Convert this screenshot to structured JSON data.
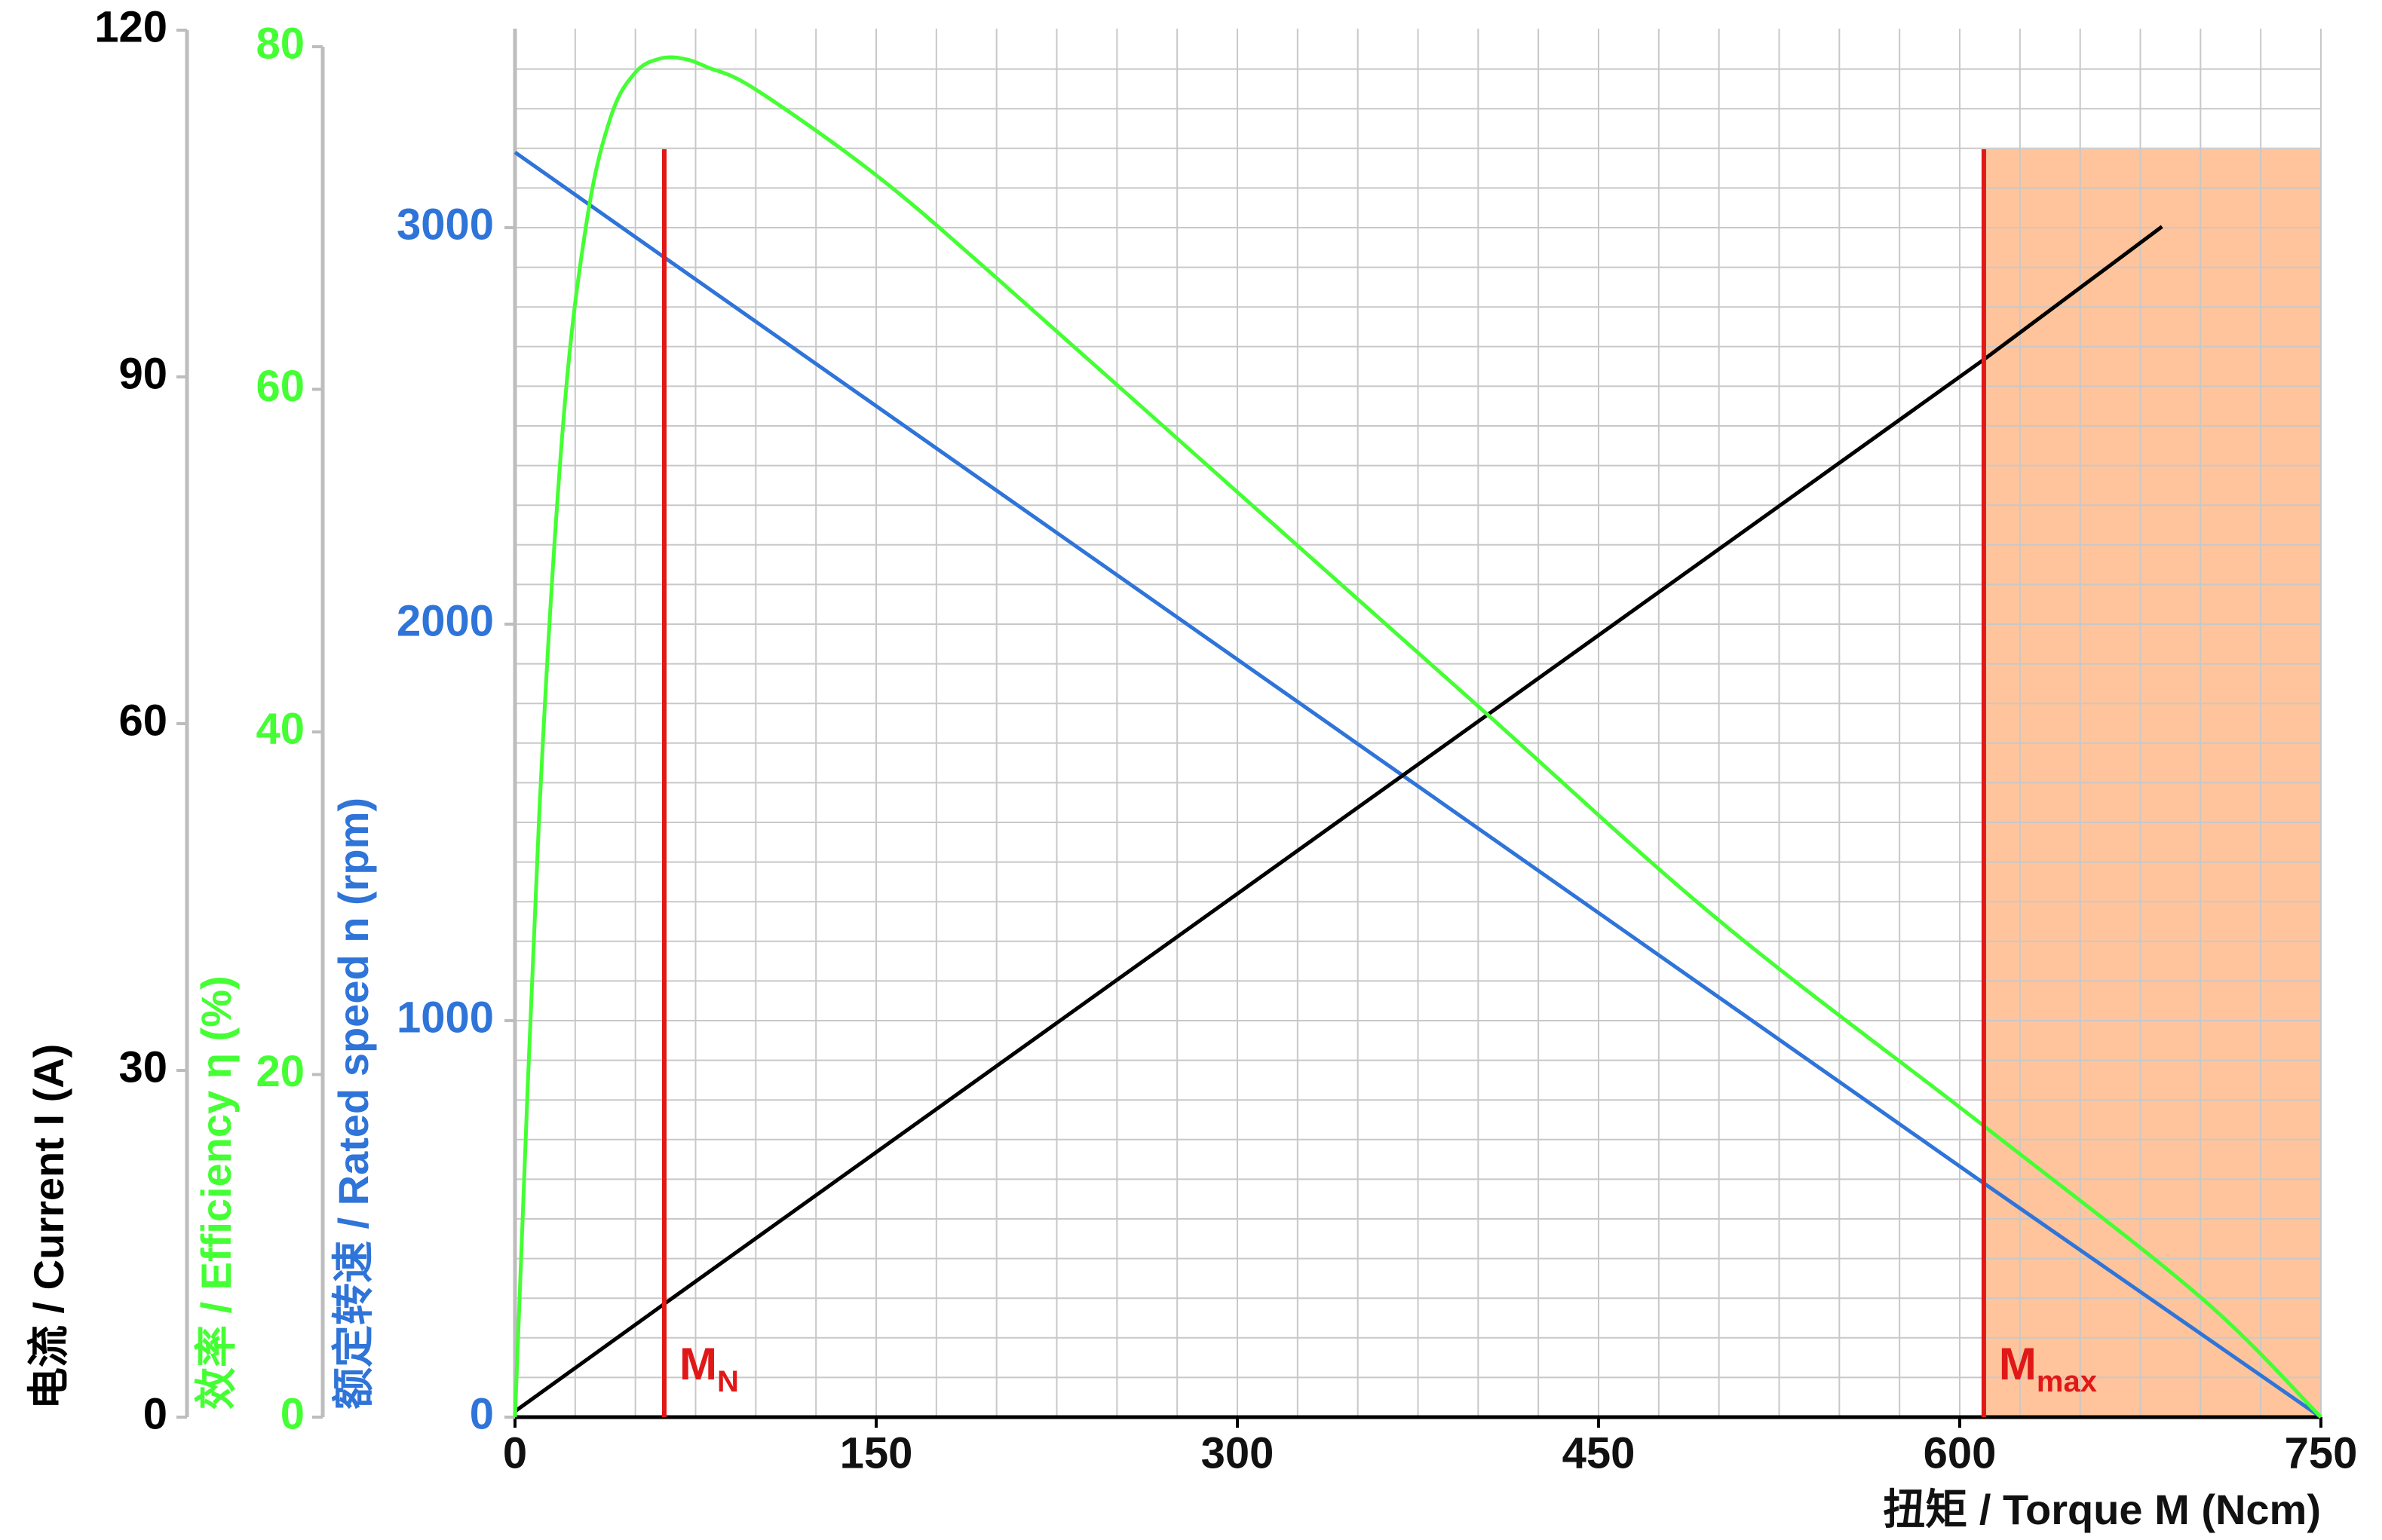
{
  "chart_data": {
    "type": "line",
    "xlabel": "扭矩 / Torque M (Ncm)",
    "xlim": [
      0,
      750
    ],
    "x_ticks": [
      "0",
      "150",
      "300",
      "450",
      "600",
      "750"
    ],
    "y_axes": [
      {
        "id": "current",
        "label": "电流 / Current I (A)",
        "color": "#000000",
        "ylim": [
          0,
          120
        ],
        "ticks": [
          "0",
          "30",
          "60",
          "90",
          "120"
        ]
      },
      {
        "id": "efficiency",
        "label": "效率 / Efficiency η (%)",
        "color": "#44ff33",
        "ylim": [
          0,
          80
        ],
        "ticks": [
          "0",
          "20",
          "40",
          "60",
          "80"
        ]
      },
      {
        "id": "speed",
        "label": "额定转速 / Rated speed n (rpm)",
        "color": "#2f74d8",
        "ylim": [
          0,
          3500
        ],
        "ticks": [
          "0",
          "1000",
          "2000",
          "3000"
        ]
      }
    ],
    "series": [
      {
        "axis": "speed",
        "color": "#2f74d8",
        "x": [
          0,
          62,
          610,
          750
        ],
        "y": [
          3190,
          2925,
          590,
          0
        ]
      },
      {
        "axis": "current",
        "color": "#000000",
        "x": [
          0,
          62,
          610,
          684
        ],
        "y": [
          0.5,
          9.8,
          91.5,
          103
        ]
      },
      {
        "axis": "efficiency",
        "color": "#44ff33",
        "x": [
          0,
          10,
          20,
          30,
          40,
          50,
          60,
          70,
          80,
          100,
          150,
          200,
          300,
          400,
          500,
          610,
          700,
          750
        ],
        "y": [
          0,
          35,
          58,
          70,
          76,
          78.5,
          79.3,
          79.3,
          78.8,
          77.5,
          72.5,
          66.5,
          54,
          41.5,
          29,
          17,
          7,
          0
        ]
      }
    ],
    "markers": [
      {
        "name": "M",
        "sub": "N",
        "x": 62,
        "color": "#e01818"
      },
      {
        "name": "M",
        "sub": "max",
        "x": 610,
        "color": "#e01818"
      }
    ],
    "overload_region": {
      "x_from": 610,
      "x_to": 750,
      "color": "#ffc49b"
    },
    "grid": true
  }
}
